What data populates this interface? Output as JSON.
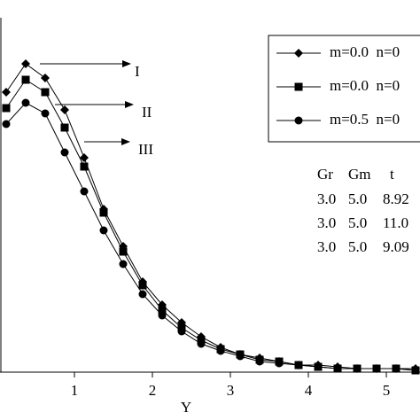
{
  "chart_data": {
    "type": "line",
    "x_label": "Y",
    "x": [
      0.125,
      0.375,
      0.625,
      0.875,
      1.125,
      1.375,
      1.625,
      1.875,
      2.125,
      2.375,
      2.625,
      2.875,
      3.125,
      3.375,
      3.625,
      3.875,
      4.125,
      4.375,
      4.625,
      4.875,
      5.125,
      5.375
    ],
    "xlim": [
      0,
      5.5
    ],
    "xticks": [
      1,
      2,
      3,
      4,
      5
    ],
    "ylim": [
      0,
      1
    ],
    "series": [
      {
        "name": "m=0.0  n=0",
        "marker": "diamond",
        "color": "#000000",
        "values": [
          0.79,
          0.87,
          0.83,
          0.74,
          0.605,
          0.46,
          0.355,
          0.255,
          0.19,
          0.14,
          0.1,
          0.07,
          0.05,
          0.04,
          0.03,
          0.02,
          0.02,
          0.015,
          0.01,
          0.01,
          0.01,
          0.01
        ]
      },
      {
        "name": "m=0.0  n=0",
        "marker": "square",
        "color": "#000000",
        "values": [
          0.745,
          0.825,
          0.79,
          0.69,
          0.58,
          0.45,
          0.34,
          0.245,
          0.175,
          0.125,
          0.09,
          0.065,
          0.05,
          0.035,
          0.03,
          0.02,
          0.015,
          0.01,
          0.01,
          0.01,
          0.01,
          0.005
        ]
      },
      {
        "name": "m=0.5  n=0",
        "marker": "circle",
        "color": "#000000",
        "values": [
          0.7,
          0.76,
          0.73,
          0.62,
          0.51,
          0.4,
          0.305,
          0.22,
          0.16,
          0.115,
          0.08,
          0.06,
          0.045,
          0.03,
          0.025,
          0.02,
          0.015,
          0.01,
          0.01,
          0.01,
          0.01,
          0.005
        ]
      }
    ],
    "annotations": [
      "I",
      "II",
      "III"
    ],
    "table": {
      "header": [
        "Gr",
        "Gm",
        "t"
      ],
      "rows": [
        [
          "3.0",
          "5.0",
          "8.92"
        ],
        [
          "3.0",
          "5.0",
          "11.0"
        ],
        [
          "3.0",
          "5.0",
          "9.09"
        ]
      ]
    }
  }
}
